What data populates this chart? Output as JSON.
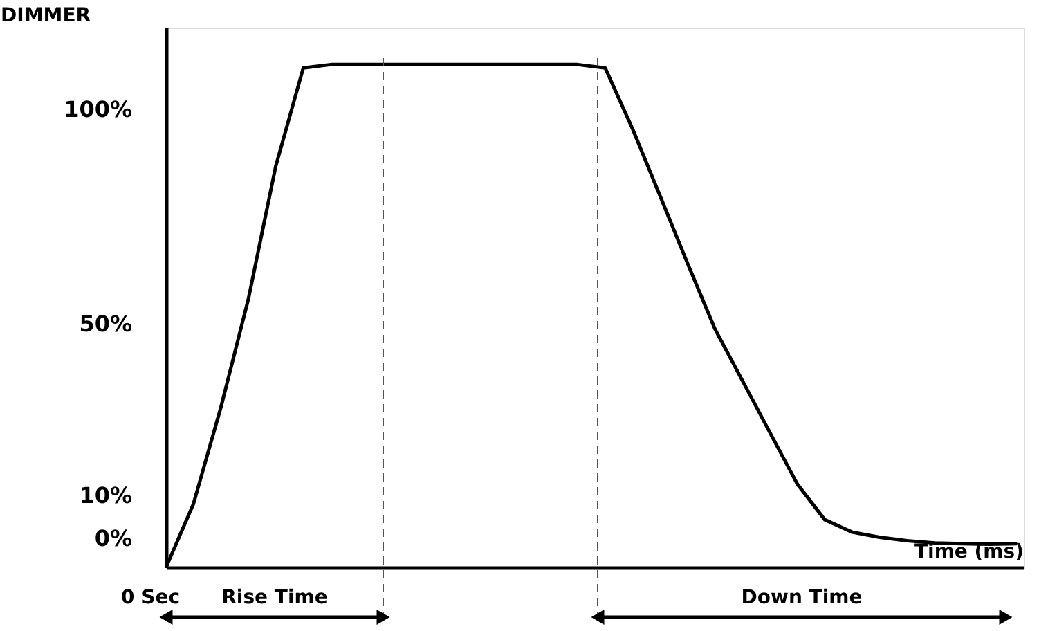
{
  "chart_data": {
    "type": "line",
    "ylabel": "DIMMER",
    "xlabel": "Time (ms)",
    "categories": [
      null,
      null,
      null,
      null,
      null,
      null,
      null,
      null,
      null,
      null,
      null,
      null,
      null,
      null,
      null,
      null,
      null,
      null,
      null,
      null,
      null,
      null,
      null,
      null,
      null,
      null,
      null,
      null,
      null,
      null,
      null,
      null
    ],
    "series": [
      {
        "color": "#000000",
        "values": [
          -6.7,
          8.1,
          30.6,
          55.8,
          86.8,
          109.6,
          110.4,
          110.4,
          110.4,
          110.4,
          110.4,
          110.4,
          110.4,
          110.4,
          110.4,
          110.4,
          109.6,
          95.4,
          79.8,
          64.1,
          48.8,
          36.8,
          24.7,
          12.7,
          4.4,
          1.5,
          0.3,
          -0.5,
          -1.0,
          -1.2,
          -1.3,
          -1.2
        ]
      }
    ],
    "ylim": [
      -6.7,
      119
    ],
    "yticks": [
      {
        "value": 0,
        "label": "0%"
      },
      {
        "value": 10,
        "label": "10%"
      },
      {
        "value": 50,
        "label": "50%"
      },
      {
        "value": 100,
        "label": "100%"
      }
    ],
    "tick_labels": "y",
    "annotations": [
      "0 Sec",
      "Rise Time",
      "Down Time"
    ],
    "grid": false,
    "marker": "none",
    "line_style": "solid"
  }
}
